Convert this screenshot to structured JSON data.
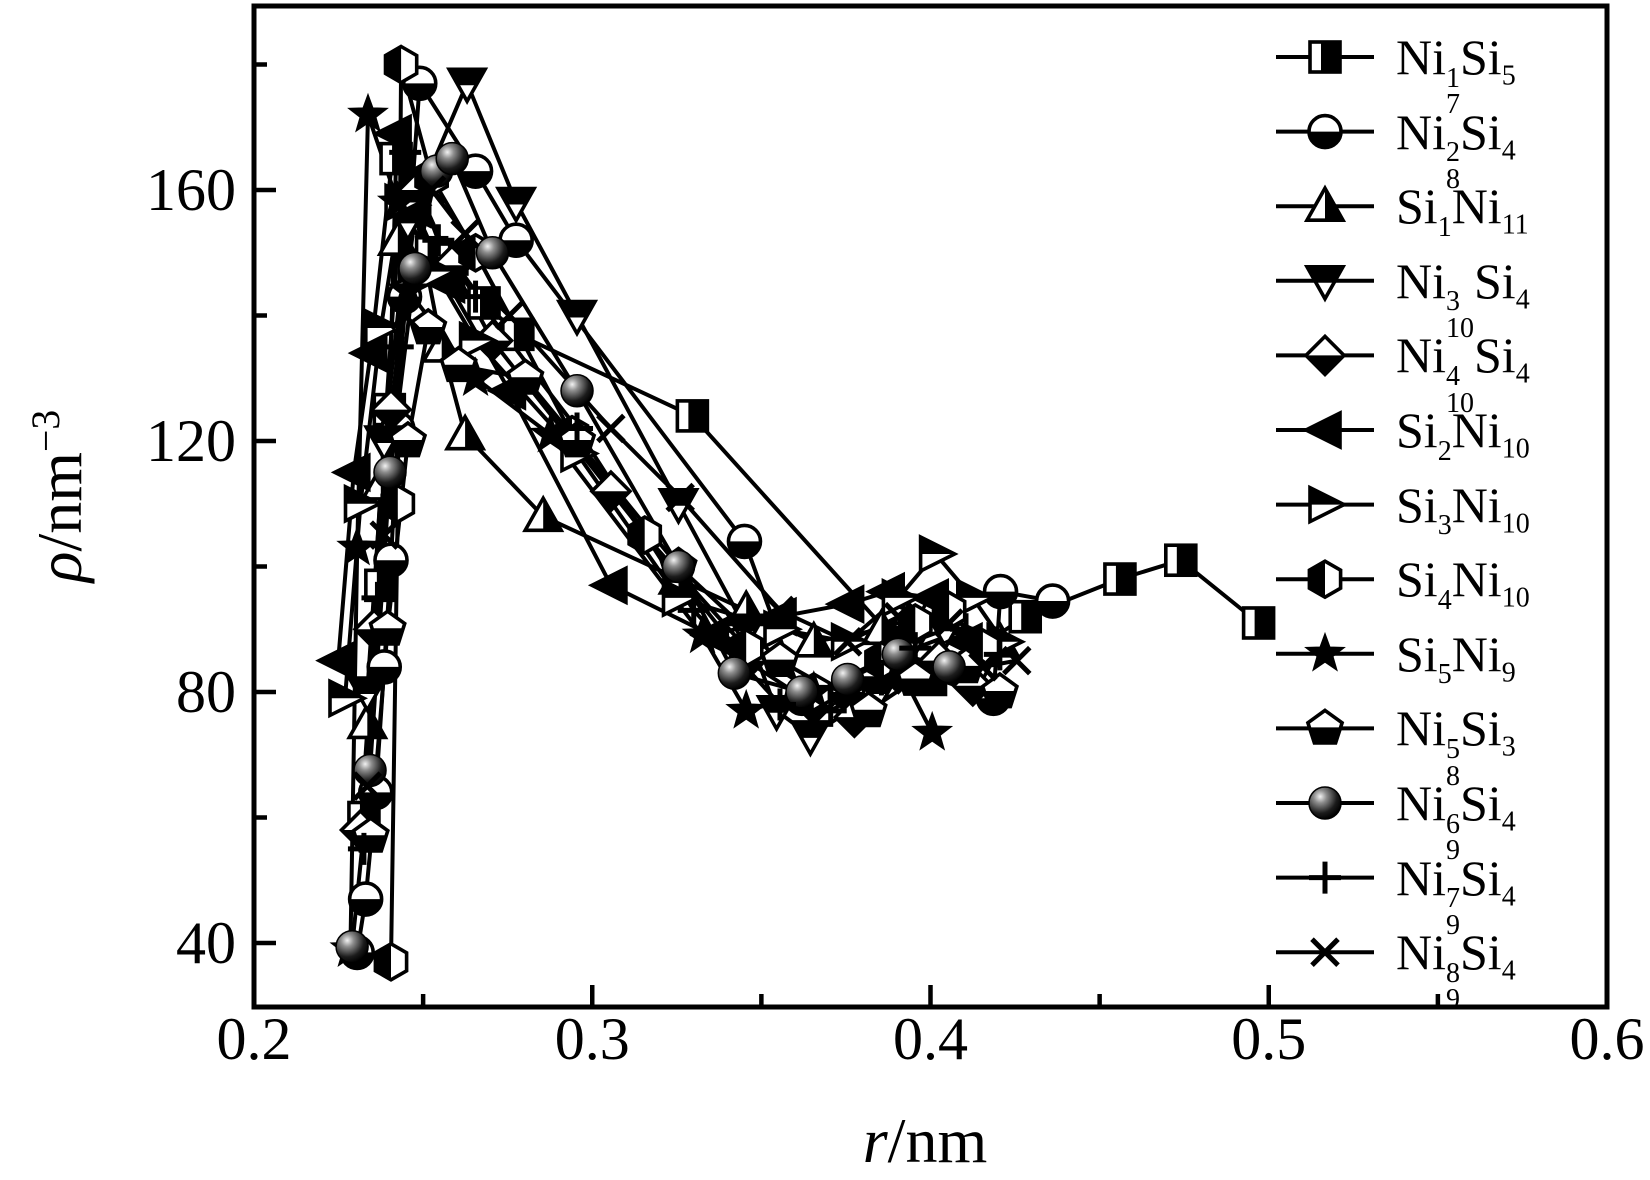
{
  "figure": {
    "background": "#ffffff",
    "ink": "#000000"
  },
  "axes": {
    "x": {
      "label_symbol": "r",
      "label_rest": "/nm",
      "min": 0.2,
      "max": 0.6
    },
    "y": {
      "label_symbol": "ρ",
      "label_rest": "/nm",
      "label_sup": "−3",
      "min": 30,
      "max": 189
    }
  },
  "chart_data": {
    "type": "line",
    "title": "",
    "xlabel": "r/nm",
    "ylabel": "ρ/nm−3",
    "grid": false,
    "legend_position": "inside-right",
    "x_range": [
      0.2,
      0.6
    ],
    "y_range": [
      30,
      189
    ],
    "x_major_ticks": [
      0.2,
      0.3,
      0.4,
      0.5,
      0.6
    ],
    "x_tick_labels": [
      "0.2",
      "0.3",
      "0.4",
      "0.5",
      "0.6"
    ],
    "x_minor_ticks": [
      0.25,
      0.35,
      0.45,
      0.55
    ],
    "y_major_ticks": [
      40,
      80,
      120,
      160
    ],
    "y_tick_labels": [
      "40",
      "80",
      "120",
      "160"
    ],
    "y_minor_ticks": [
      60,
      100,
      140,
      180
    ],
    "series": [
      {
        "id": "ni7-1-si5",
        "name": "Ni^1_7 Si_5",
        "marker": "square-half",
        "label_parts": {
          "pre": "Ni",
          "sup": "1",
          "sub": "7",
          "post": "Si",
          "post_sub": "5"
        },
        "points": [
          [
            0.2325,
            60
          ],
          [
            0.2375,
            97
          ],
          [
            0.24,
            125
          ],
          [
            0.242,
            165
          ],
          [
            0.2465,
            158
          ],
          [
            0.2525,
            150
          ],
          [
            0.2585,
            149
          ],
          [
            0.268,
            142
          ],
          [
            0.278,
            137
          ],
          [
            0.3296,
            124
          ],
          [
            0.4,
            82
          ],
          [
            0.428,
            92
          ],
          [
            0.456,
            98
          ],
          [
            0.474,
            101
          ],
          [
            0.497,
            91
          ]
        ]
      },
      {
        "id": "ni8-2-si4",
        "name": "Ni^2_8 Si_4",
        "marker": "circle-bottom",
        "label_parts": {
          "pre": "Ni",
          "sup": "2",
          "sub": "8",
          "post": "Si",
          "post_sub": "4"
        },
        "points": [
          [
            0.2305,
            38.5
          ],
          [
            0.233,
            47
          ],
          [
            0.236,
            64
          ],
          [
            0.2385,
            84
          ],
          [
            0.2405,
            101
          ],
          [
            0.2425,
            122
          ],
          [
            0.2445,
            143
          ],
          [
            0.249,
            177
          ],
          [
            0.2655,
            163
          ],
          [
            0.2775,
            152
          ],
          [
            0.345,
            104
          ],
          [
            0.362,
            79
          ],
          [
            0.3755,
            80
          ],
          [
            0.3915,
            84
          ],
          [
            0.4186,
            79
          ],
          [
            0.4207,
            96
          ],
          [
            0.4361,
            94.5
          ]
        ]
      },
      {
        "id": "si1-ni11",
        "name": "Si^1 Ni_11",
        "marker": "tri-up-half",
        "label_parts": {
          "pre": "Si",
          "sup": "1",
          "sub": "",
          "post": "Ni",
          "post_sub": "11"
        },
        "points": [
          [
            0.2335,
            75
          ],
          [
            0.2375,
            113
          ],
          [
            0.2425,
            152
          ],
          [
            0.2465,
            160
          ],
          [
            0.2555,
            135
          ],
          [
            0.2624,
            121
          ],
          [
            0.2855,
            108
          ],
          [
            0.3255,
            98
          ],
          [
            0.3455,
            93
          ],
          [
            0.3655,
            88
          ],
          [
            0.3855,
            90
          ],
          [
            0.4005,
            93
          ],
          [
            0.4205,
            88
          ]
        ]
      },
      {
        "id": "ni10-3-si4",
        "name": "Ni^3_10 Si_4",
        "marker": "tri-down-half",
        "label_parts": {
          "pre": "Ni",
          "sup": "3",
          "sub": "10",
          "post": "Si",
          "post_sub": "4"
        },
        "points": [
          [
            0.2335,
            80
          ],
          [
            0.2385,
            120
          ],
          [
            0.2455,
            155
          ],
          [
            0.263,
            177
          ],
          [
            0.2775,
            158
          ],
          [
            0.2955,
            140
          ],
          [
            0.3255,
            110
          ],
          [
            0.3455,
            90
          ],
          [
            0.3545,
            77
          ],
          [
            0.3645,
            73
          ],
          [
            0.3845,
            80
          ],
          [
            0.3945,
            88
          ],
          [
            0.4045,
            90
          ],
          [
            0.4145,
            84
          ]
        ]
      },
      {
        "id": "ni10-4-si4",
        "name": "Ni^4_10 Si_4",
        "marker": "diamond-bottom",
        "label_parts": {
          "pre": "Ni",
          "sup": "4",
          "sub": "10",
          "post": "Si",
          "post_sub": "4"
        },
        "points": [
          [
            0.2315,
            58
          ],
          [
            0.2355,
            90
          ],
          [
            0.2405,
            125
          ],
          [
            0.2485,
            160
          ],
          [
            0.2585,
            148
          ],
          [
            0.2705,
            136
          ],
          [
            0.3055,
            112
          ],
          [
            0.3455,
            85
          ],
          [
            0.3655,
            78
          ],
          [
            0.3775,
            76
          ],
          [
            0.3905,
            83
          ],
          [
            0.4025,
            85
          ],
          [
            0.4125,
            81
          ]
        ]
      },
      {
        "id": "si2-ni10",
        "name": "Si^2 Ni_10",
        "marker": "tri-left",
        "label_parts": {
          "pre": "Si",
          "sup": "2",
          "sub": "",
          "post": "Ni",
          "post_sub": "10"
        },
        "points": [
          [
            0.2249,
            85
          ],
          [
            0.2295,
            115
          ],
          [
            0.2345,
            134
          ],
          [
            0.2417,
            169
          ],
          [
            0.2475,
            157
          ],
          [
            0.2575,
            145
          ],
          [
            0.2755,
            128
          ],
          [
            0.3055,
            97
          ],
          [
            0.3355,
            89
          ],
          [
            0.3555,
            92
          ],
          [
            0.3755,
            94
          ],
          [
            0.3875,
            96
          ],
          [
            0.4005,
            95
          ],
          [
            0.4105,
            88
          ]
        ]
      },
      {
        "id": "si3-ni10",
        "name": "Si^3 Ni_10",
        "marker": "tri-right-half",
        "label_parts": {
          "pre": "Si",
          "sup": "3",
          "sub": "",
          "post": "Ni",
          "post_sub": "10"
        },
        "points": [
          [
            0.2269,
            79
          ],
          [
            0.2315,
            110
          ],
          [
            0.2375,
            138
          ],
          [
            0.2435,
            158
          ],
          [
            0.2535,
            147
          ],
          [
            0.2655,
            136
          ],
          [
            0.2955,
            118
          ],
          [
            0.3255,
            95
          ],
          [
            0.3555,
            90
          ],
          [
            0.3755,
            88
          ],
          [
            0.3905,
            95
          ],
          [
            0.4015,
            102
          ],
          [
            0.4125,
            95
          ],
          [
            0.4215,
            88
          ]
        ]
      },
      {
        "id": "si4-ni10",
        "name": "Si^4 Ni_10",
        "marker": "hex-left",
        "label_parts": {
          "pre": "Si",
          "sup": "4",
          "sub": "",
          "post": "Ni",
          "post_sub": "10"
        },
        "points": [
          [
            0.2405,
            37
          ],
          [
            0.2425,
            110
          ],
          [
            0.2435,
            180
          ],
          [
            0.2525,
            162
          ],
          [
            0.2655,
            150
          ],
          [
            0.294,
            121
          ],
          [
            0.3155,
            105
          ],
          [
            0.3455,
            87
          ],
          [
            0.3655,
            80
          ],
          [
            0.3855,
            85
          ],
          [
            0.3955,
            91
          ],
          [
            0.4055,
            93
          ],
          [
            0.4155,
            87
          ]
        ]
      },
      {
        "id": "si5-ni9",
        "name": "Si^5 Ni_9",
        "marker": "star",
        "label_parts": {
          "pre": "Si",
          "sup": "5",
          "sub": "",
          "post": "Ni",
          "post_sub": "9"
        },
        "points": [
          [
            0.2285,
            39
          ],
          [
            0.2305,
            103
          ],
          [
            0.2337,
            172
          ],
          [
            0.2425,
            158
          ],
          [
            0.2455,
            144
          ],
          [
            0.2655,
            130
          ],
          [
            0.2876,
            121
          ],
          [
            0.3326,
            89
          ],
          [
            0.3455,
            77
          ],
          [
            0.3655,
            80
          ],
          [
            0.3755,
            80
          ],
          [
            0.3905,
            84
          ],
          [
            0.4005,
            73.5
          ]
        ]
      },
      {
        "id": "ni8-5-si3",
        "name": "Ni^5_8 Si_3",
        "marker": "pentagon-bottom",
        "label_parts": {
          "pre": "Ni",
          "sup": "5",
          "sub": "8",
          "post": "Si",
          "post_sub": "3"
        },
        "points": [
          [
            0.2345,
            57
          ],
          [
            0.2395,
            90
          ],
          [
            0.2455,
            120
          ],
          [
            0.2515,
            138
          ],
          [
            0.2605,
            132
          ],
          [
            0.2802,
            130
          ],
          [
            0.2955,
            120
          ],
          [
            0.3255,
            100
          ],
          [
            0.3555,
            85
          ],
          [
            0.3817,
            77
          ],
          [
            0.3955,
            82
          ],
          [
            0.4105,
            84
          ],
          [
            0.4205,
            80
          ]
        ]
      },
      {
        "id": "ni9-6-si4",
        "name": "Ni^6_9 Si_4",
        "marker": "sphere",
        "label_parts": {
          "pre": "Ni",
          "sup": "6",
          "sub": "9",
          "post": "Si",
          "post_sub": "4"
        },
        "points": [
          [
            0.229,
            39.4
          ],
          [
            0.2343,
            67.5
          ],
          [
            0.2402,
            115
          ],
          [
            0.2476,
            147.5
          ],
          [
            0.254,
            163
          ],
          [
            0.2586,
            165
          ],
          [
            0.2705,
            150
          ],
          [
            0.2955,
            128
          ],
          [
            0.3255,
            100
          ],
          [
            0.342,
            83
          ],
          [
            0.362,
            80
          ],
          [
            0.3755,
            82
          ],
          [
            0.3905,
            86
          ],
          [
            0.4055,
            84
          ]
        ]
      },
      {
        "id": "ni9-7-si4",
        "name": "Ni^7_9 Si_4",
        "marker": "plus",
        "label_parts": {
          "pre": "Ni",
          "sup": "7",
          "sub": "9",
          "post": "Si",
          "post_sub": "4"
        },
        "points": [
          [
            0.2325,
            55
          ],
          [
            0.2365,
            95
          ],
          [
            0.2425,
            135
          ],
          [
            0.2447,
            166
          ],
          [
            0.2545,
            152
          ],
          [
            0.2655,
            143
          ],
          [
            0.2955,
            122
          ],
          [
            0.33,
            93
          ],
          [
            0.3555,
            78
          ],
          [
            0.3705,
            77
          ],
          [
            0.3855,
            82
          ],
          [
            0.3955,
            87
          ],
          [
            0.4105,
            90
          ],
          [
            0.4205,
            86
          ]
        ]
      },
      {
        "id": "ni9-8-si4",
        "name": "Ni^8_9 Si_4",
        "marker": "cross",
        "label_parts": {
          "pre": "Ni",
          "sup": "8",
          "sub": "9",
          "post": "Si",
          "post_sub": "4"
        },
        "points": [
          [
            0.2335,
            65
          ],
          [
            0.2385,
            105
          ],
          [
            0.2445,
            140
          ],
          [
            0.2525,
            160
          ],
          [
            0.2624,
            153
          ],
          [
            0.2755,
            140
          ],
          [
            0.3055,
            122
          ],
          [
            0.326,
            111
          ],
          [
            0.3555,
            93
          ],
          [
            0.3755,
            88
          ],
          [
            0.3905,
            92
          ],
          [
            0.4055,
            91
          ],
          [
            0.4155,
            84
          ],
          [
            0.4255,
            85
          ]
        ]
      }
    ]
  }
}
